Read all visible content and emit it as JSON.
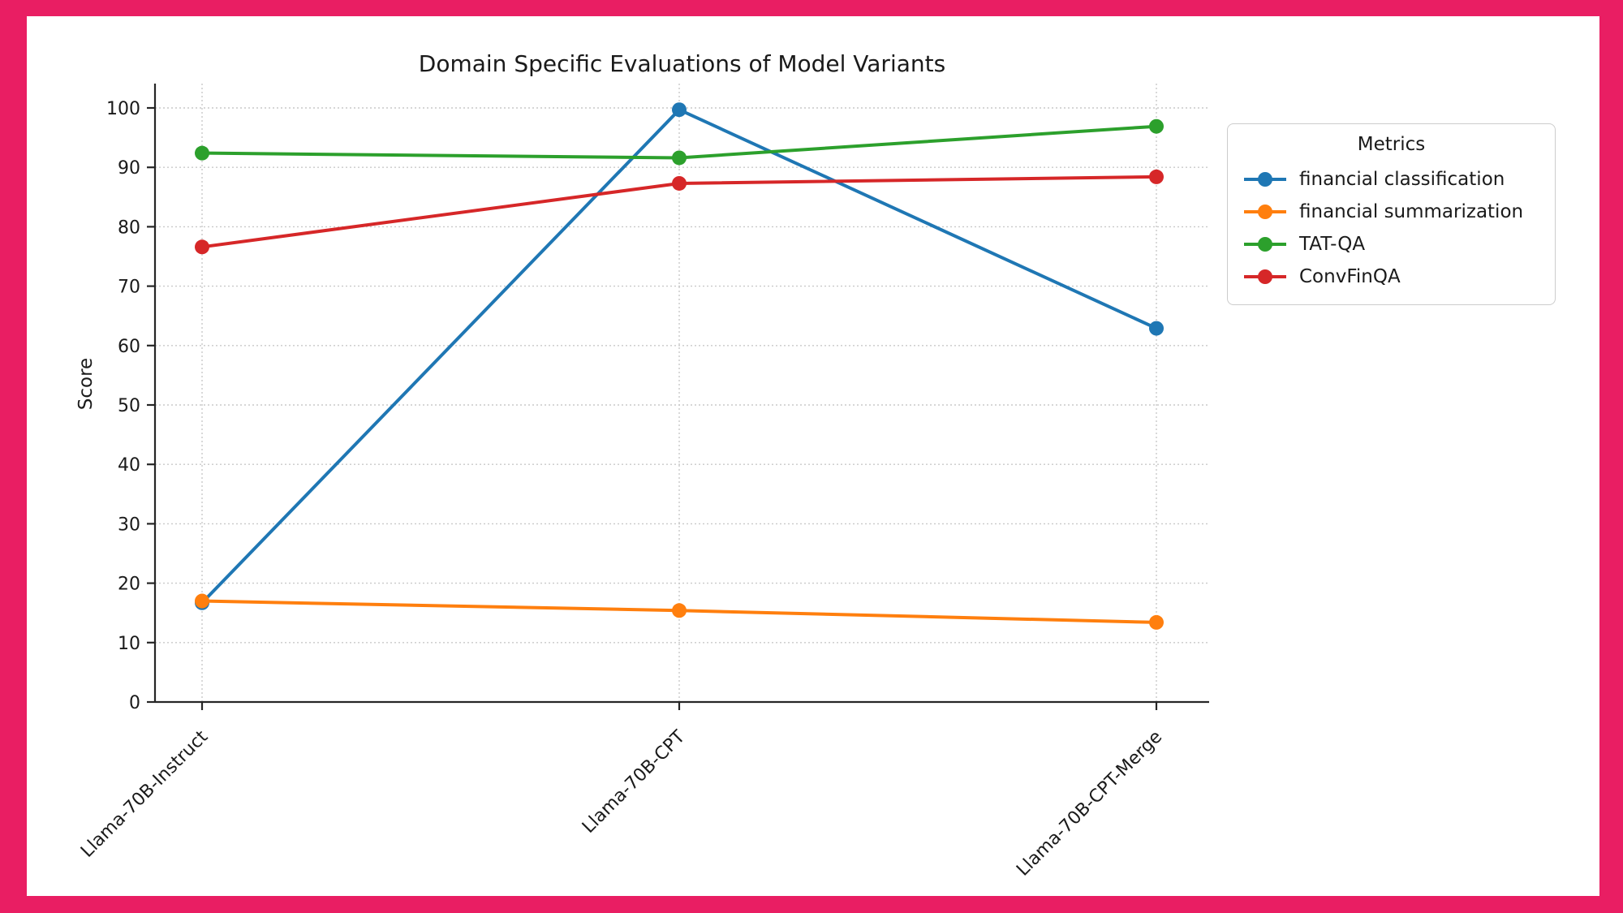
{
  "page": {
    "frame_color": "#E91E63",
    "canvas_color": "#ffffff"
  },
  "chart_data": {
    "type": "line",
    "title": "Domain Specific Evaluations of Model Variants",
    "xlabel": "",
    "ylabel": "Score",
    "ylim": [
      0,
      100
    ],
    "ytick_step": 10,
    "grid": true,
    "categories": [
      "Llama-70B-Instruct",
      "Llama-70B-CPT",
      "Llama-70B-CPT-Merge"
    ],
    "series": [
      {
        "name": "financial classification",
        "color": "#1f77b4",
        "values": [
          16.7,
          99.7,
          62.9
        ]
      },
      {
        "name": "financial summarization",
        "color": "#ff7f0e",
        "values": [
          17.0,
          15.4,
          13.4
        ]
      },
      {
        "name": "TAT-QA",
        "color": "#2ca02c",
        "values": [
          92.4,
          91.6,
          96.9
        ]
      },
      {
        "name": "ConvFinQA",
        "color": "#d62728",
        "values": [
          76.6,
          87.3,
          88.4
        ]
      }
    ],
    "legend_title": "Metrics",
    "legend_position": "upper right, outside plot"
  }
}
